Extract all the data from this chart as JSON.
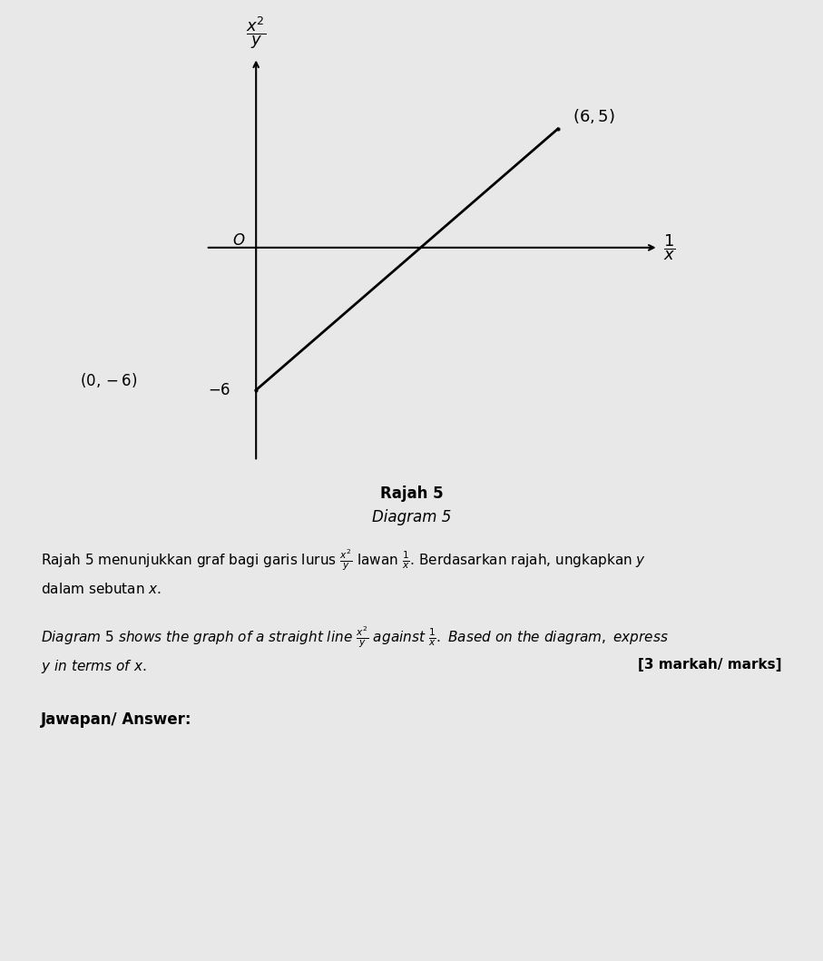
{
  "background_color": "#e8e8e8",
  "graph_bg": "#e8e8e8",
  "title_rajah": "Rajah 5",
  "title_diagram": "Diagram 5",
  "point1": [
    0,
    -6
  ],
  "point2": [
    6,
    5
  ],
  "point_label1": "(0,- 6)",
  "point_label2": "(6, 5)",
  "yintercept_label": "-6",
  "xlabel_frac_num": "1",
  "xlabel_frac_den": "x",
  "ylabel_frac_num": "x^2",
  "ylabel_frac_den": "y",
  "origin_label": "O",
  "para1_normal": "Rajah 5 menunjukkan graf bagi garis lurus ",
  "para1_frac_num": "x^2",
  "para1_frac_den": "y",
  "para1_middle": " lawan ",
  "para1_frac2_num": "1",
  "para1_frac2_den": "x",
  "para1_end": ". Berdasarkan rajah, ungkapkan y",
  "para1_line2": "dalam sebutan x.",
  "para2_italic_frac_num": "x^2",
  "para2_italic_frac_den": "y",
  "para2_italic_middle": " against ",
  "para2_italic_frac2_num": "1",
  "para2_italic_frac2_den": "x",
  "para2_line2": "y in terms of x.",
  "marks_text": "[3 markah/ marks]",
  "answer_label": "Jawapan/ Answer:"
}
